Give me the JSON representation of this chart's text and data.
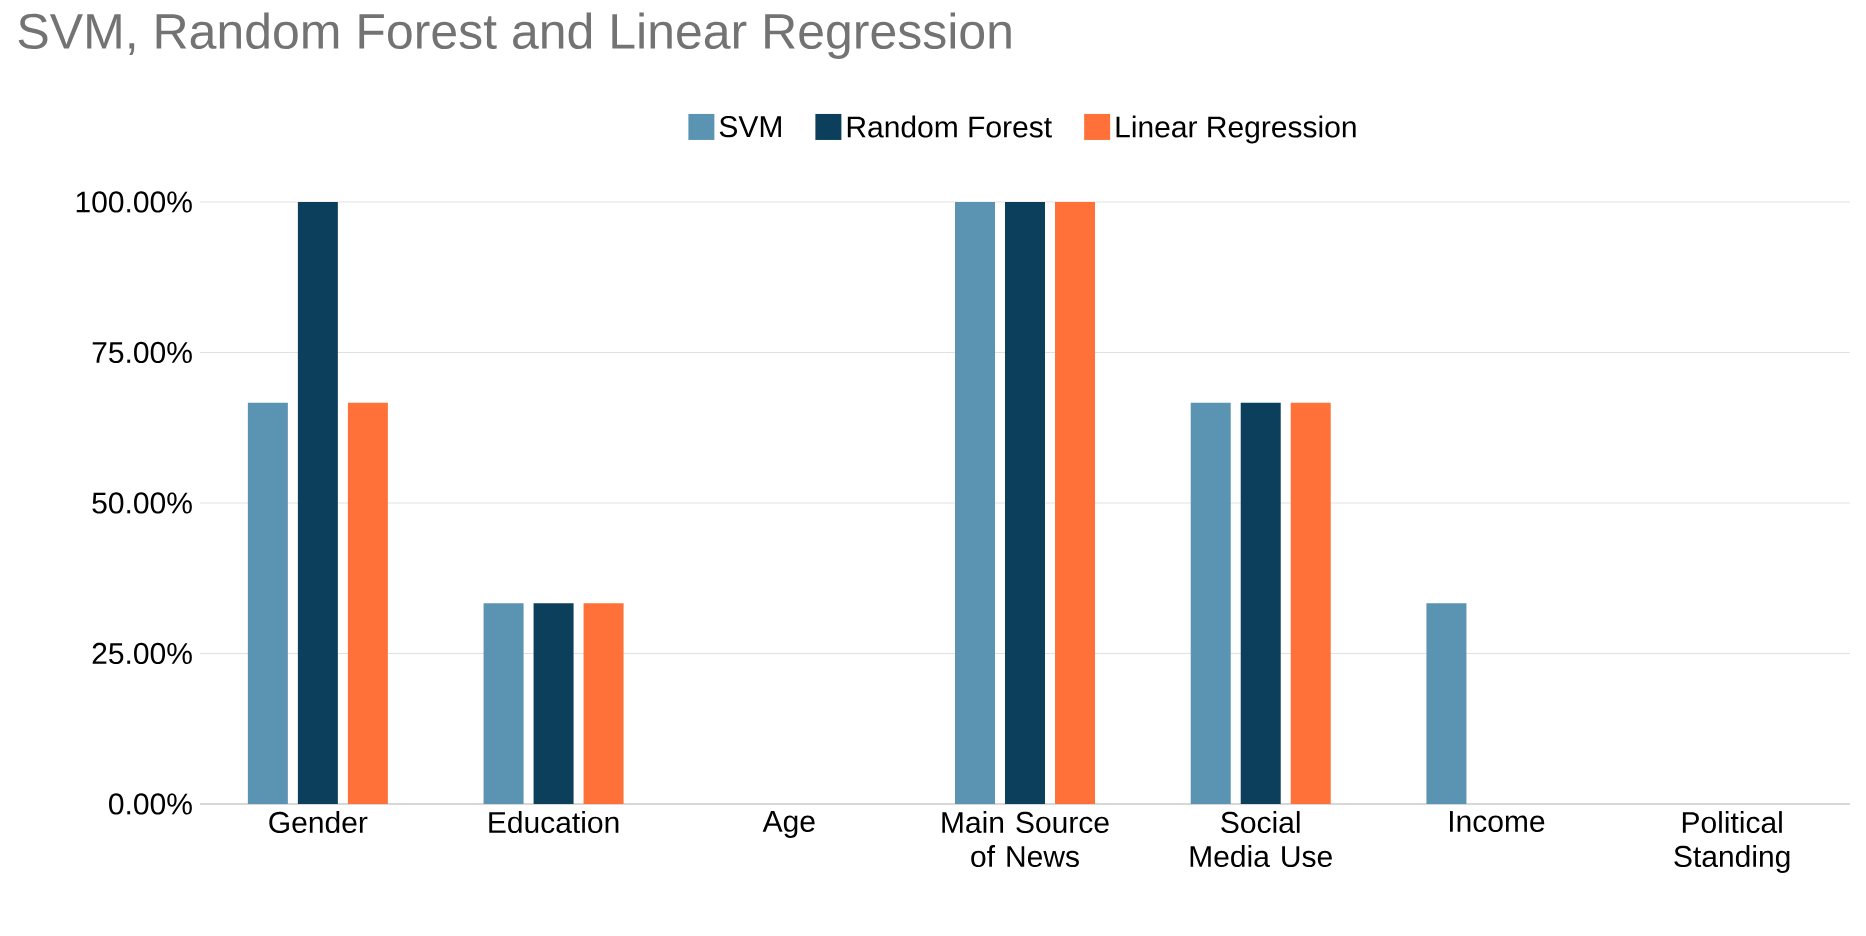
{
  "chart_data": {
    "type": "bar",
    "title": "SVM, Random Forest and Linear Regression",
    "categories": [
      "Gender",
      "Education",
      "Age",
      "Main Source of News",
      "Social Media Use",
      "Income",
      "Political Standing"
    ],
    "series": [
      {
        "name": "SVM",
        "color": "#5b93b3",
        "values": [
          66.67,
          33.33,
          0,
          100,
          66.67,
          33.33,
          0
        ]
      },
      {
        "name": "Random Forest",
        "color": "#0b3f5c",
        "values": [
          100,
          33.33,
          0,
          100,
          66.67,
          0,
          0
        ]
      },
      {
        "name": "Linear Regression",
        "color": "#ff7138",
        "values": [
          66.67,
          33.33,
          0,
          100,
          66.67,
          0,
          0
        ]
      }
    ],
    "ylim": [
      0,
      100
    ],
    "yticks": [
      {
        "value": 0,
        "label": "0.00%"
      },
      {
        "value": 25,
        "label": "25.00%"
      },
      {
        "value": 50,
        "label": "50.00%"
      },
      {
        "value": 75,
        "label": "75.00%"
      },
      {
        "value": 100,
        "label": "100.00%"
      }
    ],
    "grid": "y",
    "legend": "top"
  }
}
